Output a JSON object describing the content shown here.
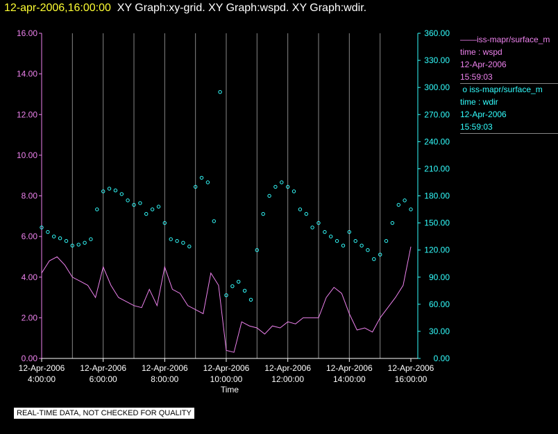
{
  "header": {
    "time": "12-apr-2006,16:00:00",
    "graphs": "XY Graph:xy-grid.  XY Graph:wspd.  XY Graph:wdir."
  },
  "legend": {
    "wspd": {
      "lines": [
        "iss-mapr/surface_m",
        "time : wspd",
        "12-Apr-2006",
        "15:59:03"
      ],
      "color": "#ee82ee"
    },
    "wdir": {
      "lines": [
        "iss-mapr/surface_m",
        "time : wdir",
        "12-Apr-2006",
        "15:59:03"
      ],
      "color": "#33ffff"
    }
  },
  "qc_label": "REAL-TIME DATA, NOT CHECKED FOR QUALITY",
  "chart_data": {
    "type": "line",
    "xlabel": "Time",
    "x_ticks": [
      {
        "date": "12-Apr-2006",
        "time": "4:00:00"
      },
      {
        "date": "12-Apr-2006",
        "time": "6:00:00"
      },
      {
        "date": "12-Apr-2006",
        "time": "8:00:00"
      },
      {
        "date": "12-Apr-2006",
        "time": "10:00:00"
      },
      {
        "date": "12-Apr-2006",
        "time": "12:00:00"
      },
      {
        "date": "12-Apr-2006",
        "time": "14:00:00"
      },
      {
        "date": "12-Apr-2006",
        "time": "16:00:00"
      }
    ],
    "y_left": {
      "ylim": [
        0,
        16
      ],
      "ticks": [
        "0.00",
        "2.00",
        "4.00",
        "6.00",
        "8.00",
        "10.00",
        "12.00",
        "14.00",
        "16.00"
      ],
      "color": "#ee82ee"
    },
    "y_right": {
      "ylim": [
        0,
        360
      ],
      "ticks": [
        "0.00",
        "30.00",
        "60.00",
        "90.00",
        "120.00",
        "150.00",
        "180.00",
        "210.00",
        "240.00",
        "270.00",
        "300.00",
        "330.00",
        "360.00"
      ],
      "color": "#33ffff"
    },
    "grid": "vertical lines at x ticks",
    "series": [
      {
        "style": "line",
        "color": "#ee82ee",
        "axis": "left",
        "x_hours": [
          4.0,
          4.25,
          4.5,
          4.75,
          5.0,
          5.25,
          5.5,
          5.75,
          6.0,
          6.25,
          6.5,
          6.75,
          7.0,
          7.25,
          7.5,
          7.75,
          8.0,
          8.25,
          8.5,
          8.75,
          9.0,
          9.25,
          9.5,
          9.75,
          10.0,
          10.25,
          10.5,
          10.75,
          11.0,
          11.25,
          11.5,
          11.75,
          12.0,
          12.25,
          12.5,
          12.75,
          13.0,
          13.25,
          13.5,
          13.75,
          14.0,
          14.25,
          14.5,
          14.75,
          15.0,
          15.25,
          15.5,
          15.75,
          16.0
        ],
        "values": [
          4.2,
          4.8,
          5.0,
          4.6,
          4.0,
          3.8,
          3.6,
          3.0,
          4.5,
          3.6,
          3.0,
          2.8,
          2.6,
          2.5,
          3.4,
          2.6,
          4.5,
          3.4,
          3.2,
          2.6,
          2.4,
          2.2,
          4.2,
          3.6,
          0.4,
          0.3,
          1.8,
          1.6,
          1.5,
          1.2,
          1.6,
          1.5,
          1.8,
          1.7,
          2.0,
          2.0,
          2.0,
          3.0,
          3.5,
          3.2,
          2.2,
          1.4,
          1.5,
          1.3,
          2.0,
          2.5,
          3.0,
          3.6,
          5.5
        ]
      },
      {
        "style": "scatter",
        "color": "#33ffff",
        "axis": "right",
        "x_hours": [
          4.0,
          4.2,
          4.4,
          4.6,
          4.8,
          5.0,
          5.2,
          5.4,
          5.6,
          5.8,
          6.0,
          6.2,
          6.4,
          6.6,
          6.8,
          7.0,
          7.2,
          7.4,
          7.6,
          7.8,
          8.0,
          8.2,
          8.4,
          8.6,
          8.8,
          9.0,
          9.2,
          9.4,
          9.6,
          9.8,
          10.0,
          10.2,
          10.4,
          10.6,
          10.8,
          11.0,
          11.2,
          11.4,
          11.6,
          11.8,
          12.0,
          12.2,
          12.4,
          12.6,
          12.8,
          13.0,
          13.2,
          13.4,
          13.6,
          13.8,
          14.0,
          14.2,
          14.4,
          14.6,
          14.8,
          15.0,
          15.2,
          15.4,
          15.6,
          15.8,
          16.0
        ],
        "values": [
          145,
          140,
          135,
          133,
          130,
          125,
          126,
          128,
          132,
          165,
          185,
          188,
          186,
          182,
          175,
          170,
          172,
          160,
          165,
          168,
          150,
          132,
          130,
          128,
          124,
          190,
          200,
          195,
          152,
          295,
          70,
          80,
          85,
          75,
          65,
          120,
          160,
          180,
          190,
          195,
          190,
          185,
          165,
          160,
          145,
          150,
          140,
          135,
          130,
          125,
          140,
          130,
          125,
          120,
          110,
          115,
          130,
          150,
          170,
          175,
          165
        ]
      }
    ]
  }
}
